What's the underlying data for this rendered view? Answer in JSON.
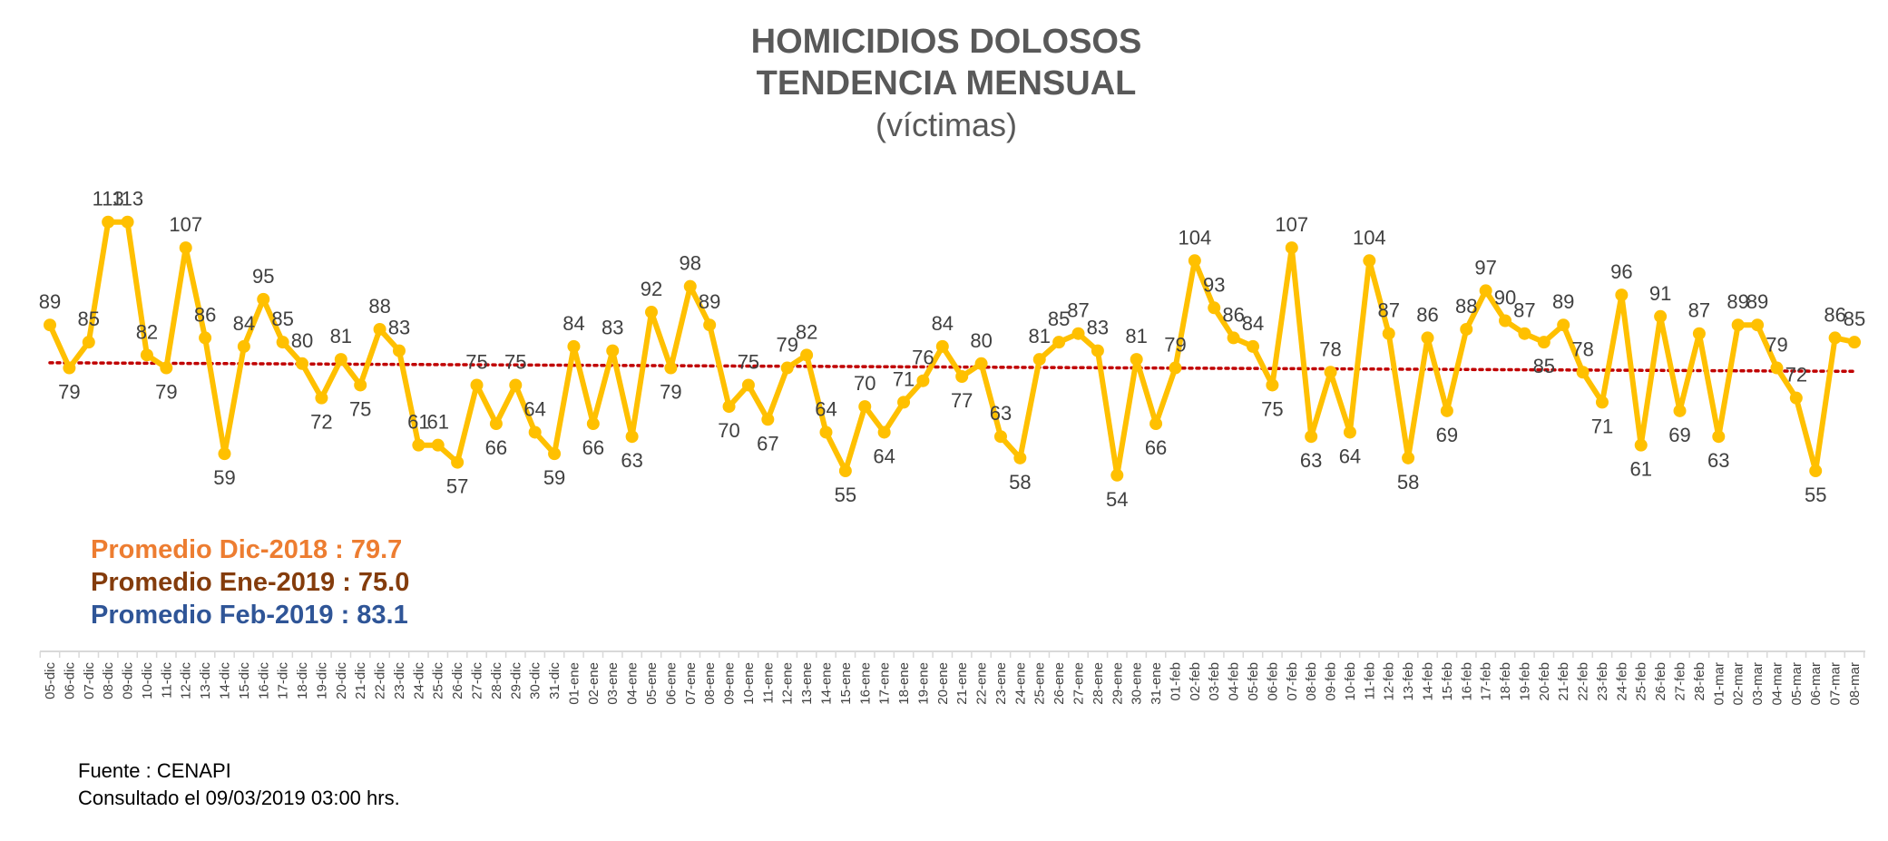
{
  "chart_data": {
    "type": "line",
    "title": "HOMICIDIOS DOLOSOS",
    "subtitle": "TENDENCIA MENSUAL",
    "unit_label": "(víctimas)",
    "grid": false,
    "legend": "none",
    "ylim": [
      40,
      125
    ],
    "categories": [
      "05-dic",
      "06-dic",
      "07-dic",
      "08-dic",
      "09-dic",
      "10-dic",
      "11-dic",
      "12-dic",
      "13-dic",
      "14-dic",
      "15-dic",
      "16-dic",
      "17-dic",
      "18-dic",
      "19-dic",
      "20-dic",
      "21-dic",
      "22-dic",
      "23-dic",
      "24-dic",
      "25-dic",
      "26-dic",
      "27-dic",
      "28-dic",
      "29-dic",
      "30-dic",
      "31-dic",
      "01-ene",
      "02-ene",
      "03-ene",
      "04-ene",
      "05-ene",
      "06-ene",
      "07-ene",
      "08-ene",
      "09-ene",
      "10-ene",
      "11-ene",
      "12-ene",
      "13-ene",
      "14-ene",
      "15-ene",
      "16-ene",
      "17-ene",
      "18-ene",
      "19-ene",
      "20-ene",
      "21-ene",
      "22-ene",
      "23-ene",
      "24-ene",
      "25-ene",
      "26-ene",
      "27-ene",
      "28-ene",
      "29-ene",
      "30-ene",
      "31-ene",
      "01-feb",
      "02-feb",
      "03-feb",
      "04-feb",
      "05-feb",
      "06-feb",
      "07-feb",
      "08-feb",
      "09-feb",
      "10-feb",
      "11-feb",
      "12-feb",
      "13-feb",
      "14-feb",
      "15-feb",
      "16-feb",
      "17-feb",
      "18-feb",
      "19-feb",
      "20-feb",
      "21-feb",
      "22-feb",
      "23-feb",
      "24-feb",
      "25-feb",
      "26-feb",
      "27-feb",
      "28-feb",
      "01-mar",
      "02-mar",
      "03-mar",
      "04-mar",
      "05-mar",
      "06-mar",
      "07-mar",
      "08-mar"
    ],
    "series": [
      {
        "color": "#FFC000",
        "values": [
          89,
          79,
          85,
          113,
          113,
          82,
          79,
          107,
          86,
          59,
          84,
          95,
          85,
          80,
          72,
          81,
          75,
          88,
          83,
          61,
          61,
          57,
          75,
          66,
          75,
          64,
          59,
          84,
          66,
          83,
          63,
          92,
          79,
          98,
          89,
          70,
          75,
          67,
          79,
          82,
          64,
          55,
          70,
          64,
          71,
          76,
          84,
          77,
          80,
          63,
          58,
          81,
          85,
          87,
          83,
          54,
          81,
          66,
          79,
          104,
          93,
          86,
          84,
          75,
          107,
          63,
          78,
          64,
          104,
          87,
          58,
          86,
          69,
          88,
          97,
          90,
          87,
          85,
          89,
          78,
          71,
          96,
          61,
          91,
          69,
          87,
          63,
          89,
          89,
          79,
          72,
          55,
          86,
          85
        ]
      }
    ],
    "trend_line": {
      "color": "#C00000",
      "start": 80.2,
      "end": 78.2
    },
    "averages": [
      {
        "label": "Promedio Dic-2018  : 79.7",
        "color": "#ED7D31"
      },
      {
        "label": "Promedio Ene-2019 : 75.0",
        "color": "#843C0C"
      },
      {
        "label": "Promedio Feb-2019 : 83.1",
        "color": "#2F5597"
      }
    ]
  },
  "source": {
    "line1": "Fuente : CENAPI",
    "line2": "Consultado el 09/03/2019  03:00 hrs."
  }
}
